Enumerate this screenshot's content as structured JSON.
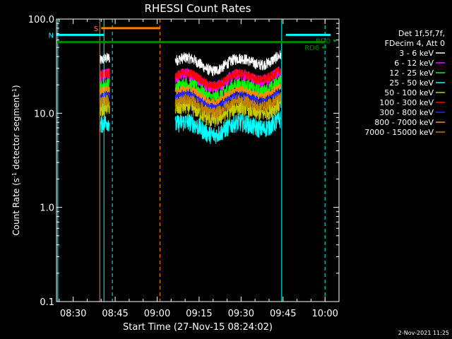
{
  "chart_data": {
    "type": "line",
    "title": "RHESSI Count Rates",
    "xlabel": "Start Time (27-Nov-15 08:24:02)",
    "ylabel_parts": [
      "Count Rate (s",
      "-1",
      " detector segment",
      "-1",
      ")"
    ],
    "yscale": "log",
    "ylim": [
      0.1,
      100.0
    ],
    "xlim_min": [
      504.03,
      605.0
    ],
    "x_ticks": [
      {
        "t": 510,
        "label": "08:30"
      },
      {
        "t": 525,
        "label": "08:45"
      },
      {
        "t": 540,
        "label": "09:00"
      },
      {
        "t": 555,
        "label": "09:15"
      },
      {
        "t": 570,
        "label": "09:30"
      },
      {
        "t": 585,
        "label": "09:45"
      },
      {
        "t": 600,
        "label": "10:00"
      }
    ],
    "y_ticks": [
      {
        "v": 0.1,
        "label": "0.1"
      },
      {
        "v": 1.0,
        "label": "1.0"
      },
      {
        "v": 10.0,
        "label": "10.0"
      },
      {
        "v": 100.0,
        "label": "100.0"
      }
    ],
    "legend_header": [
      "Det 1f,5f,7f,",
      "FDecim 4, Att 0"
    ],
    "legend_position": "right",
    "segments": [
      [
        519.5,
        523.0
      ],
      [
        546.5,
        584.2
      ]
    ],
    "series": [
      {
        "name": "3 - 6 keV",
        "color": "#ffffff",
        "level": 36,
        "noise": 0.06
      },
      {
        "name": "6 - 12 keV",
        "color": "#ff00ff",
        "level": 24,
        "noise": 0.07
      },
      {
        "name": "12 - 25 keV",
        "color": "#00ff00",
        "level": 19,
        "noise": 0.07
      },
      {
        "name": "25 - 50 keV",
        "color": "#00ffff",
        "level": 7.5,
        "noise": 0.1
      },
      {
        "name": "50 - 100 keV",
        "color": "#c8c800",
        "level": 11,
        "noise": 0.09
      },
      {
        "name": "100 - 300 keV",
        "color": "#ff0000",
        "level": 25,
        "noise": 0.05
      },
      {
        "name": "300 - 800 keV",
        "color": "#2828ff",
        "level": 15,
        "noise": 0.06
      },
      {
        "name": "800 - 7000 keV",
        "color": "#ff8c00",
        "level": 17,
        "noise": 0.04
      },
      {
        "name": "7000 - 15000 keV",
        "color": "#c08000",
        "level": 13,
        "noise": 0.06
      }
    ],
    "flag_bars": [
      {
        "label": "S",
        "color": "#ff8000",
        "t0": 520.0,
        "t1": 541.0,
        "y": 80
      },
      {
        "label": "N",
        "color": "#00ffff",
        "t0": 504.03,
        "t1": 521.0,
        "y": 68
      },
      {
        "label": "",
        "color": "#00ffff",
        "t0": 586.0,
        "t1": 602.0,
        "y": 68
      },
      {
        "label": "",
        "color": "#008000",
        "t0": 504.03,
        "t1": 600.0,
        "y": 57
      },
      {
        "label": "RD6",
        "color": "#008000",
        "t0": 599.0,
        "t1": 600.5,
        "y": 50
      },
      {
        "label": "RD0",
        "color": "#008000",
        "t0": 603.0,
        "t1": 604.0,
        "y": 59
      }
    ],
    "vlines": [
      {
        "t": 504.5,
        "color": "#00ffff",
        "dash": false
      },
      {
        "t": 519.5,
        "color": "#ff8000",
        "dash": false
      },
      {
        "t": 521.0,
        "color": "#00ffff",
        "dash": false
      },
      {
        "t": 524.0,
        "color": "#00ffff",
        "dash": true
      },
      {
        "t": 541.0,
        "color": "#ff8000",
        "dash": true
      },
      {
        "t": 584.5,
        "color": "#00ffff",
        "dash": false
      },
      {
        "t": 600.0,
        "color": "#00ffff",
        "dash": true
      }
    ],
    "footer_date": "2-Nov-2021 11:25"
  }
}
